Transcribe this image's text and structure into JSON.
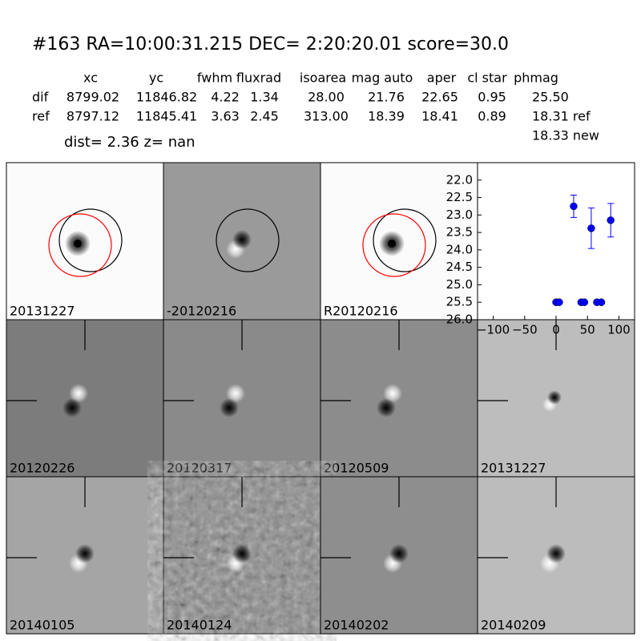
{
  "header": {
    "title": "#163   RA=10:00:31.215 DEC= 2:20:20.01       score=30.0",
    "dist": "dist=  2.36      z=   nan"
  },
  "table": {
    "columns": [
      "xc",
      "yc",
      "fwhm",
      "fluxrad",
      "isoarea",
      "mag auto",
      "aper",
      "cl star",
      "phmag"
    ],
    "rows": [
      [
        "dif",
        "8799.02",
        "11846.82",
        "4.22",
        "1.34",
        "28.00",
        "21.76",
        "22.65",
        "0.95",
        "25.50"
      ],
      [
        "ref",
        "8797.12",
        "11845.41",
        "3.63",
        "2.45",
        "313.00",
        "18.39",
        "18.41",
        "0.89",
        "18.31 ref"
      ]
    ],
    "extra_line": "18.33 new"
  },
  "panels": [
    {
      "label": "20131227"
    },
    {
      "label": "-20120216"
    },
    {
      "label": "R20120216"
    },
    {
      "label": "20120226"
    },
    {
      "label": "20120317"
    },
    {
      "label": "20120509"
    },
    {
      "label": "20131227",
      "label_color": "#ff0000"
    },
    {
      "label": "20140105"
    },
    {
      "label": "20140124"
    },
    {
      "label": "20140202"
    },
    {
      "label": "20140209"
    }
  ],
  "chart_data": {
    "type": "scatter",
    "color": "#0000ff",
    "x": [
      0,
      5,
      40,
      45,
      65,
      72,
      28,
      56,
      87
    ],
    "values": [
      25.5,
      25.5,
      25.5,
      25.5,
      25.5,
      25.5,
      22.75,
      23.38,
      23.15
    ],
    "errors": [
      0.05,
      0.05,
      0.05,
      0.05,
      0.05,
      0.05,
      0.32,
      0.58,
      0.48
    ],
    "xlim": [
      -125,
      125
    ],
    "ylim": [
      26.0,
      21.5
    ],
    "xticks": [
      {
        "value": -100,
        "label": "−100"
      },
      {
        "value": -50,
        "label": "−50"
      },
      0,
      50,
      100
    ],
    "yticks": [
      {
        "value": 22,
        "label": "22.0"
      },
      22.5,
      {
        "value": 23,
        "label": "23.0"
      },
      23.5,
      {
        "value": 24,
        "label": "24.0"
      },
      24.5,
      {
        "value": 25,
        "label": "25.0"
      },
      25.5,
      {
        "value": 26,
        "label": "26.0"
      }
    ]
  }
}
